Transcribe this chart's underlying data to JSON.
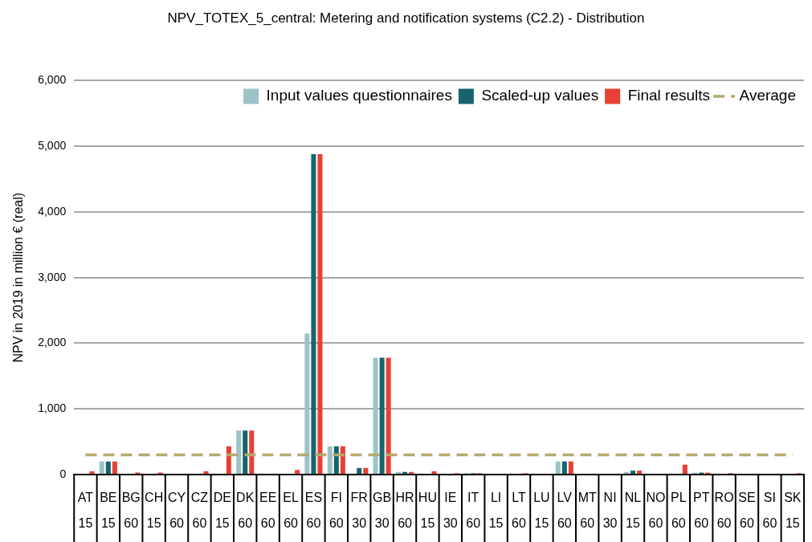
{
  "chart_data": {
    "type": "bar",
    "title": "NPV_TOTEX_5_central: Metering and notification systems (C2.2) - Distribution",
    "ylabel": "NPV in 2019 in million € (real)",
    "categories": [
      "AT\n15",
      "BE\n15",
      "BG\n60",
      "CH\n15",
      "CY\n60",
      "CZ\n60",
      "DE\n15",
      "DK\n60",
      "EE\n60",
      "EL\n60",
      "ES\n60",
      "FI\n60",
      "FR\n30",
      "GB\n30",
      "HR\n60",
      "HU\n15",
      "IE\n30",
      "IT\n60",
      "LI\n15",
      "LT\n60",
      "LU\n15",
      "LV\n60",
      "MT\n60",
      "NI\n30",
      "NL\n15",
      "NO\n60",
      "PL\n60",
      "PT\n60",
      "RO\n60",
      "SE\n60",
      "SI\n60",
      "SK\n15"
    ],
    "series": [
      {
        "name": "Input values questionnaires",
        "color": "#9dc3c6",
        "values": [
          0,
          200,
          0,
          0,
          0,
          0,
          0,
          670,
          0,
          0,
          2150,
          430,
          0,
          1780,
          40,
          0,
          0,
          20,
          0,
          0,
          0,
          200,
          0,
          0,
          40,
          0,
          0,
          30,
          0,
          0,
          0,
          0
        ]
      },
      {
        "name": "Scaled-up values",
        "color": "#17646e",
        "values": [
          0,
          200,
          0,
          0,
          0,
          0,
          0,
          670,
          0,
          0,
          4880,
          430,
          100,
          1780,
          40,
          0,
          0,
          20,
          0,
          0,
          0,
          200,
          0,
          0,
          60,
          0,
          0,
          30,
          0,
          0,
          0,
          0
        ]
      },
      {
        "name": "Final results",
        "color": "#e84034",
        "values": [
          50,
          200,
          30,
          30,
          0,
          50,
          430,
          670,
          0,
          70,
          4880,
          430,
          100,
          1780,
          40,
          50,
          20,
          20,
          0,
          20,
          0,
          200,
          0,
          0,
          60,
          0,
          150,
          30,
          20,
          0,
          0,
          20
        ]
      }
    ],
    "ylim": [
      0,
      6000
    ],
    "yticks": [
      0,
      {
        "value": 1000,
        "label": "1,000"
      },
      {
        "value": 2000,
        "label": "2,000"
      },
      {
        "value": 3000,
        "label": "3,000"
      },
      {
        "value": 4000,
        "label": "4,000"
      },
      {
        "value": 5000,
        "label": "5,000"
      },
      {
        "value": 6000,
        "label": "6,000"
      }
    ],
    "grid": "y",
    "legend": "top right",
    "ref_lines": [
      {
        "axis": "y",
        "value": 300,
        "label": "Average",
        "color": "#b5a96e",
        "line_style": "dashed"
      }
    ]
  }
}
